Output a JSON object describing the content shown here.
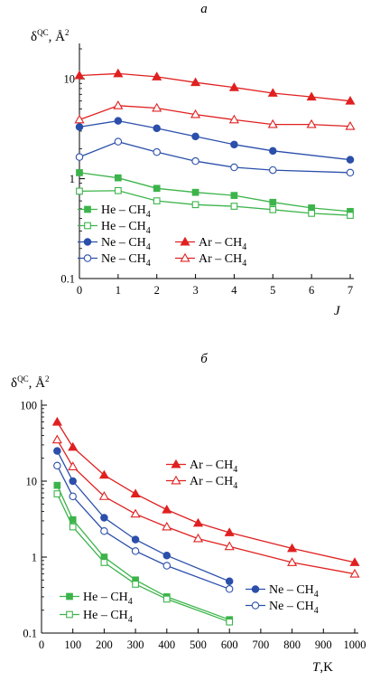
{
  "chart_data": [
    {
      "panel": "a",
      "type": "line",
      "ylabel": "δQC, Å2",
      "ylabel_main": "δ",
      "ylabel_sup": "QC",
      "ylabel_unit": ", Å",
      "ylabel_unit_sup": "2",
      "xlabel": "J",
      "xlim": [
        0,
        7
      ],
      "ylim": [
        0.1,
        20
      ],
      "yscale": "log",
      "x_ticks": [
        "0",
        "1",
        "2",
        "3",
        "4",
        "5",
        "6",
        "7"
      ],
      "y_ticks": [
        "0.1",
        "1",
        "10"
      ],
      "grid": false,
      "x": [
        0,
        1,
        2,
        3,
        4,
        5,
        6,
        7
      ],
      "series": [
        {
          "name": "He – CH4",
          "label": "He – CH",
          "label_sub": "4",
          "marker": "filled-square",
          "color": "#3cb44b",
          "values": [
            1.15,
            1.02,
            0.8,
            0.73,
            0.68,
            0.58,
            0.51,
            0.47
          ]
        },
        {
          "name": "He – CH4",
          "label": "He – CH",
          "label_sub": "4",
          "marker": "open-square",
          "color": "#3cb44b",
          "values": [
            0.75,
            0.76,
            0.6,
            0.55,
            0.53,
            0.49,
            0.45,
            0.43
          ]
        },
        {
          "name": "Ne – CH4",
          "label": "Ne – CH",
          "label_sub": "4",
          "marker": "filled-circle",
          "color": "#2b4faa",
          "values": [
            3.3,
            3.8,
            3.2,
            2.65,
            2.2,
            1.9,
            null,
            1.55
          ]
        },
        {
          "name": "Ne – CH4",
          "label": "Ne – CH",
          "label_sub": "4",
          "marker": "open-circle",
          "color": "#2b4faa",
          "values": [
            1.65,
            2.35,
            1.85,
            1.5,
            1.3,
            1.22,
            null,
            1.15
          ]
        },
        {
          "name": "Ar – CH4",
          "label": "Ar – CH",
          "label_sub": "4",
          "marker": "filled-triangle",
          "color": "#e02020",
          "values": [
            10.8,
            11.3,
            10.5,
            9.2,
            8.2,
            7.2,
            6.6,
            6.0
          ]
        },
        {
          "name": "Ar – CH4",
          "label": "Ar – CH",
          "label_sub": "4",
          "marker": "open-triangle",
          "color": "#e02020",
          "values": [
            3.9,
            5.4,
            5.1,
            4.4,
            3.9,
            3.5,
            3.5,
            3.35
          ]
        }
      ]
    },
    {
      "panel": "б",
      "type": "line",
      "ylabel": "δQC, Å2",
      "ylabel_main": "δ",
      "ylabel_sup": "QC",
      "ylabel_unit": ", Å",
      "ylabel_unit_sup": "2",
      "xlabel": "T,K",
      "xlabel_var": "T",
      "xlabel_unit": ",K",
      "xlim": [
        0,
        1000
      ],
      "ylim": [
        0.1,
        100
      ],
      "yscale": "log",
      "x_ticks": [
        "0",
        "100",
        "200",
        "300",
        "400",
        "500",
        "600",
        "700",
        "800",
        "900",
        "1000"
      ],
      "y_ticks": [
        "0.1",
        "1",
        "10",
        "100"
      ],
      "grid": false,
      "series": [
        {
          "name": "Ar – CH4",
          "label": "Ar – CH",
          "label_sub": "4",
          "marker": "filled-triangle",
          "color": "#e02020",
          "x": [
            50,
            100,
            200,
            300,
            400,
            500,
            600,
            800,
            1000
          ],
          "values": [
            60,
            28,
            12,
            6.8,
            4.2,
            2.8,
            2.1,
            1.3,
            0.85
          ]
        },
        {
          "name": "Ar – CH4",
          "label": "Ar – CH",
          "label_sub": "4",
          "marker": "open-triangle",
          "color": "#e02020",
          "x": [
            50,
            100,
            200,
            300,
            400,
            500,
            600,
            800,
            1000
          ],
          "values": [
            35,
            15.5,
            6.3,
            3.7,
            2.5,
            1.75,
            1.38,
            0.85,
            0.6
          ]
        },
        {
          "name": "Ne – CH4",
          "label": "Ne – CH",
          "label_sub": "4",
          "marker": "filled-circle",
          "color": "#2b4faa",
          "x": [
            50,
            100,
            200,
            300,
            400,
            600
          ],
          "values": [
            25,
            10,
            3.3,
            1.7,
            1.05,
            0.48
          ]
        },
        {
          "name": "Ne – CH4",
          "label": "Ne – CH",
          "label_sub": "4",
          "marker": "open-circle",
          "color": "#2b4faa",
          "x": [
            50,
            100,
            200,
            300,
            400,
            600
          ],
          "values": [
            16,
            6.3,
            2.2,
            1.2,
            0.77,
            0.38
          ]
        },
        {
          "name": "He – CH4",
          "label": "He – CH",
          "label_sub": "4",
          "marker": "filled-square",
          "color": "#3cb44b",
          "x": [
            50,
            100,
            200,
            300,
            400,
            600
          ],
          "values": [
            8.8,
            3.1,
            1.0,
            0.5,
            0.3,
            0.15
          ]
        },
        {
          "name": "He – CH4",
          "label": "He – CH",
          "label_sub": "4",
          "marker": "open-square",
          "color": "#3cb44b",
          "x": [
            50,
            100,
            200,
            300,
            400,
            600
          ],
          "values": [
            6.8,
            2.5,
            0.85,
            0.44,
            0.28,
            0.14
          ]
        }
      ]
    }
  ]
}
